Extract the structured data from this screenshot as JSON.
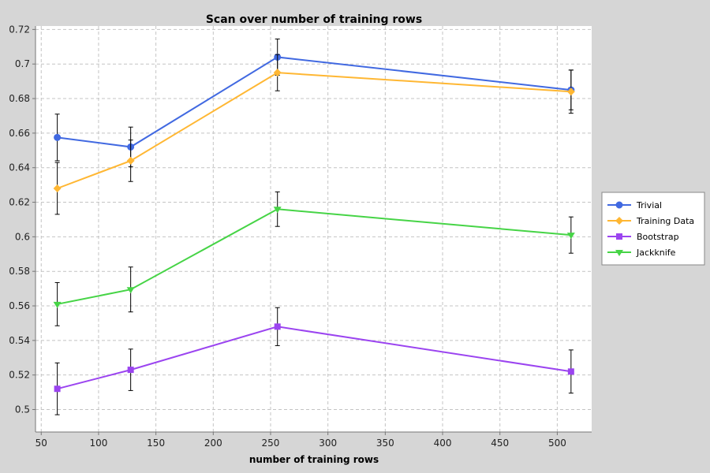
{
  "chart_data": {
    "type": "line",
    "title": "Scan over number of training rows",
    "xlabel": "number of training rows",
    "ylabel": "",
    "xlim": [
      45,
      530
    ],
    "ylim": [
      0.487,
      0.722
    ],
    "x_ticks": [
      50,
      100,
      150,
      200,
      250,
      300,
      350,
      400,
      450,
      500
    ],
    "y_ticks": [
      0.5,
      0.52,
      0.54,
      0.56,
      0.58,
      0.6,
      0.62,
      0.64,
      0.66,
      0.68,
      0.7,
      0.72
    ],
    "grid": true,
    "error_bars": true,
    "legend_position": "right",
    "x": [
      64,
      128,
      256,
      512
    ],
    "series": [
      {
        "name": "Trivial",
        "color": "#4169e1",
        "marker": "circle",
        "values": [
          0.6575,
          0.652,
          0.704,
          0.685
        ],
        "errors": [
          0.0135,
          0.0115,
          0.0105,
          0.0115
        ]
      },
      {
        "name": "Training Data",
        "color": "#ffb733",
        "marker": "diamond",
        "values": [
          0.628,
          0.644,
          0.695,
          0.684
        ],
        "errors": [
          0.015,
          0.012,
          0.0105,
          0.0125
        ]
      },
      {
        "name": "Bootstrap",
        "color": "#9b44f0",
        "marker": "square",
        "values": [
          0.512,
          0.523,
          0.548,
          0.522
        ],
        "errors": [
          0.015,
          0.012,
          0.011,
          0.0125
        ]
      },
      {
        "name": "Jackknife",
        "color": "#46d446",
        "marker": "triangle-down",
        "values": [
          0.561,
          0.5695,
          0.616,
          0.601
        ],
        "errors": [
          0.0125,
          0.013,
          0.01,
          0.0105
        ]
      }
    ]
  }
}
